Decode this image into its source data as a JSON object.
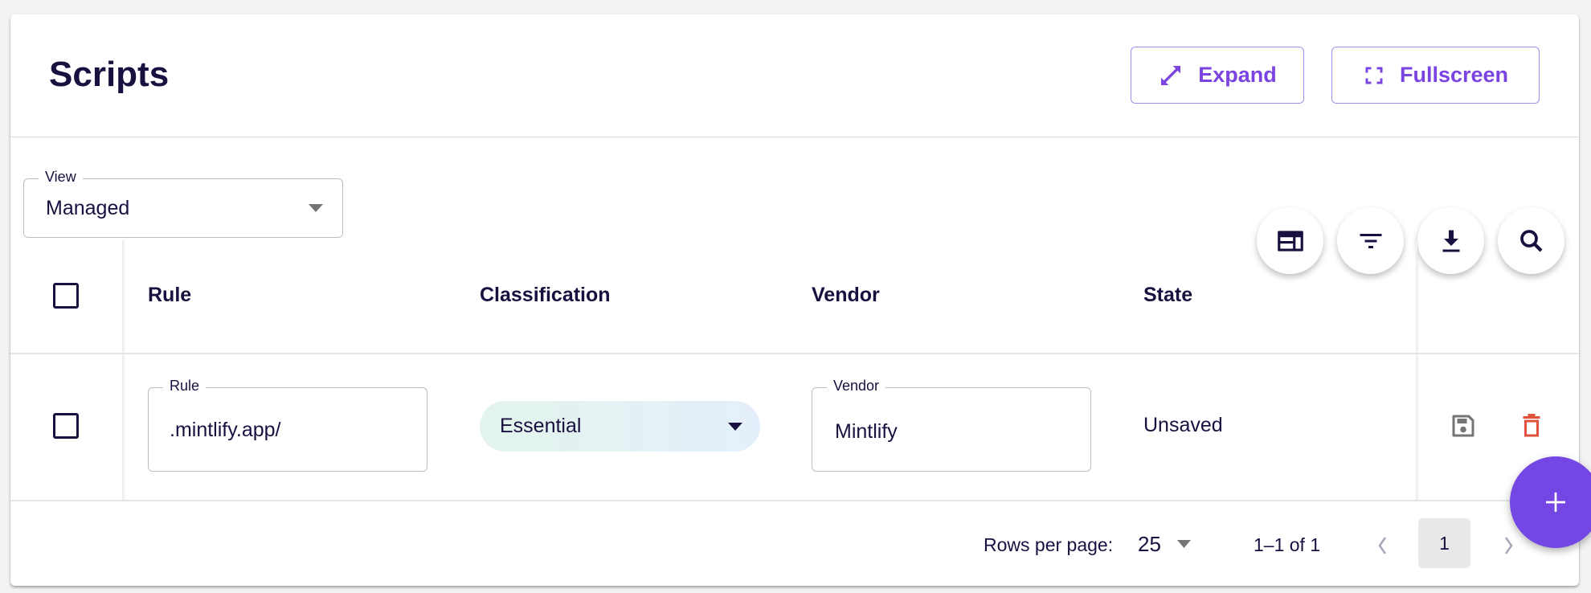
{
  "header": {
    "title": "Scripts",
    "expand_label": "Expand",
    "fullscreen_label": "Fullscreen"
  },
  "view_select": {
    "label": "View",
    "value": "Managed"
  },
  "toolbar": {
    "icons": [
      "columns-icon",
      "filter-icon",
      "download-icon",
      "search-icon"
    ]
  },
  "table": {
    "columns": [
      "Rule",
      "Classification",
      "Vendor",
      "State"
    ],
    "rows": [
      {
        "rule_label": "Rule",
        "rule": ".mintlify.app/",
        "classification": "Essential",
        "vendor_label": "Vendor",
        "vendor": "Mintlify",
        "state": "Unsaved"
      }
    ]
  },
  "footer": {
    "rows_per_page_label": "Rows per page:",
    "rows_per_page": "25",
    "range": "1–1 of 1",
    "current_page": "1"
  },
  "colors": {
    "accent": "#7b44e0",
    "text": "#1a1040",
    "delete": "#e0523c",
    "fab": "#7446e3"
  }
}
